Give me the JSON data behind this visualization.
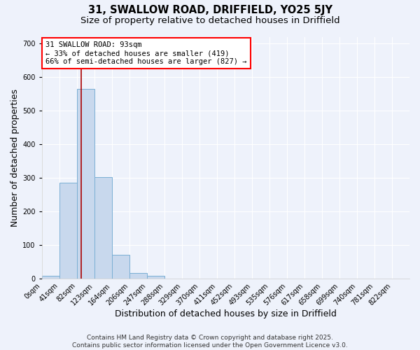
{
  "title_line1": "31, SWALLOW ROAD, DRIFFIELD, YO25 5JY",
  "title_line2": "Size of property relative to detached houses in Driffield",
  "xlabel": "Distribution of detached houses by size in Driffield",
  "ylabel": "Number of detached properties",
  "bin_labels": [
    "0sqm",
    "41sqm",
    "82sqm",
    "123sqm",
    "164sqm",
    "206sqm",
    "247sqm",
    "288sqm",
    "329sqm",
    "370sqm",
    "411sqm",
    "452sqm",
    "493sqm",
    "535sqm",
    "576sqm",
    "617sqm",
    "658sqm",
    "699sqm",
    "740sqm",
    "781sqm",
    "822sqm"
  ],
  "bar_heights": [
    8,
    285,
    565,
    303,
    72,
    16,
    9,
    0,
    0,
    0,
    0,
    0,
    0,
    0,
    0,
    0,
    0,
    0,
    0,
    0
  ],
  "bar_color": "#c8d8ed",
  "bar_edge_color": "#7aafd4",
  "annotation_text": "31 SWALLOW ROAD: 93sqm\n← 33% of detached houses are smaller (419)\n66% of semi-detached houses are larger (827) →",
  "annotation_box_color": "white",
  "annotation_box_edge_color": "red",
  "red_line_color": "#aa0000",
  "ylim": [
    0,
    720
  ],
  "yticks": [
    0,
    100,
    200,
    300,
    400,
    500,
    600,
    700
  ],
  "footer_line1": "Contains HM Land Registry data © Crown copyright and database right 2025.",
  "footer_line2": "Contains public sector information licensed under the Open Government Licence v3.0.",
  "background_color": "#eef2fb",
  "grid_color": "white",
  "title_fontsize": 10.5,
  "subtitle_fontsize": 9.5,
  "axis_label_fontsize": 9,
  "tick_fontsize": 7,
  "footer_fontsize": 6.5,
  "annotation_fontsize": 7.5
}
